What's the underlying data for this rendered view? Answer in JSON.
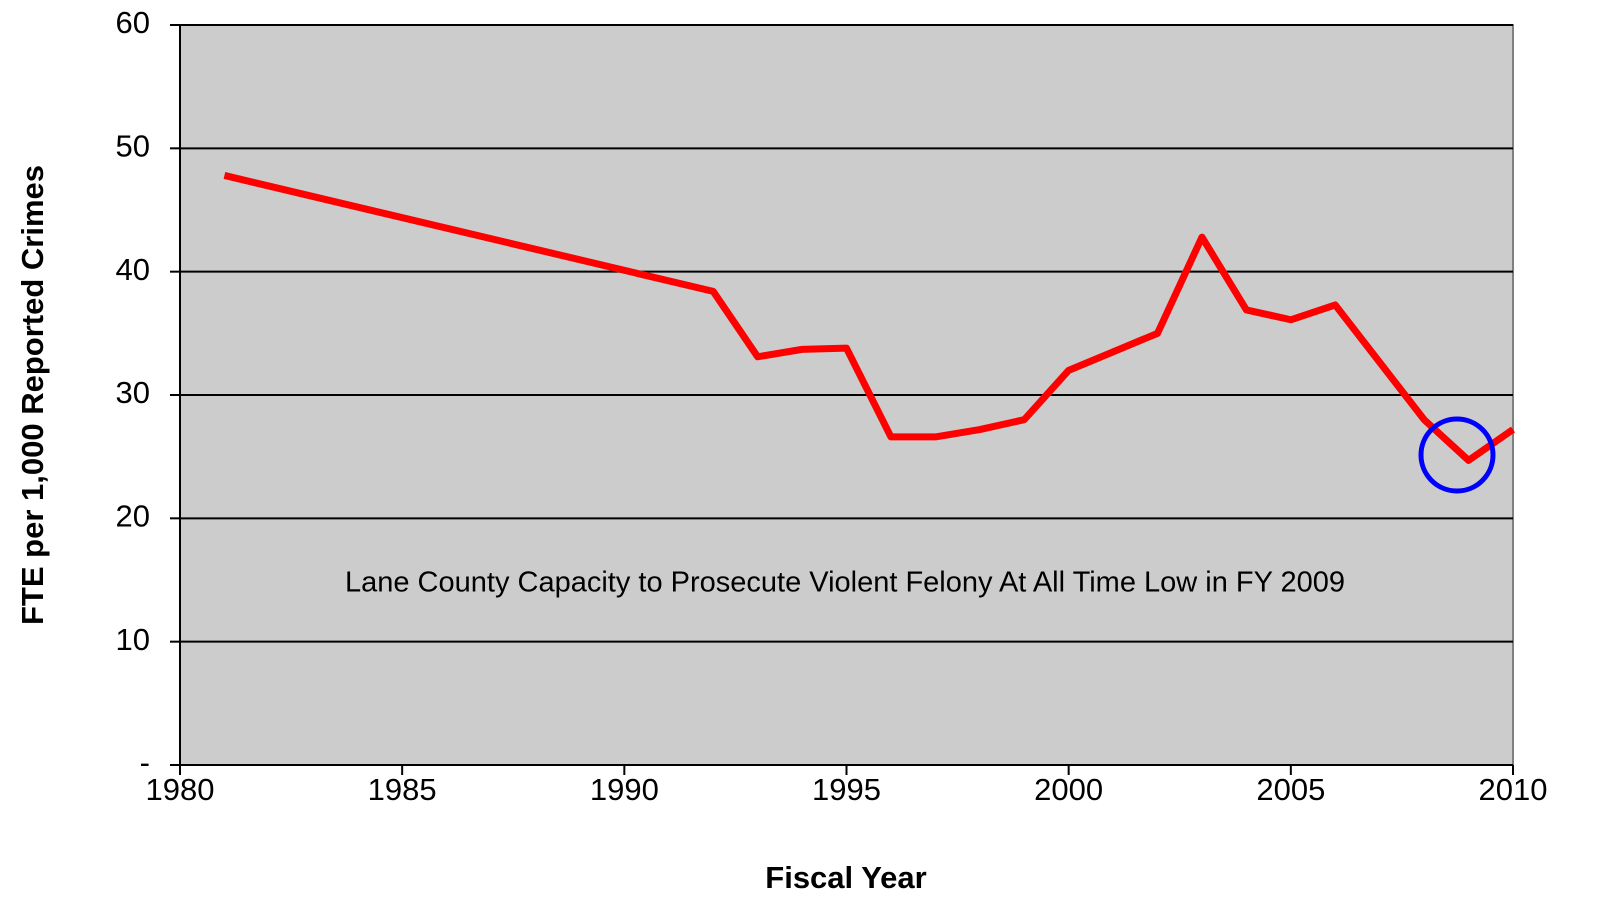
{
  "chart_data": {
    "type": "line",
    "annotation": "Lane County Capacity to Prosecute Violent Felony At All Time Low in FY 2009",
    "x_label": "Fiscal Year",
    "y_label": "FTE per 1,000 Reported Crimes",
    "x": [
      1981,
      1992,
      1993,
      1994,
      1995,
      1996,
      1997,
      1998,
      1999,
      2000,
      2001,
      2002,
      2003,
      2004,
      2005,
      2006,
      2008,
      2009,
      2010
    ],
    "series": [
      {
        "name": "FTE per 1,000 Reported Crimes",
        "color": "#ff0000",
        "values": [
          47.8,
          38.4,
          33.1,
          33.7,
          33.8,
          26.6,
          26.6,
          27.2,
          28,
          32,
          33.5,
          35,
          42.8,
          36.9,
          36.1,
          37.3,
          28,
          24.7,
          27.2
        ]
      }
    ],
    "xlim": [
      1980,
      2010
    ],
    "xticks": [
      1980,
      1985,
      1990,
      1995,
      2000,
      2005,
      2010
    ],
    "ylim": [
      0,
      60
    ],
    "yticks": [
      {
        "value": 0,
        "label": "-"
      },
      10,
      20,
      30,
      40,
      50,
      60
    ],
    "grid": true,
    "plot_background": "#cccccc"
  }
}
